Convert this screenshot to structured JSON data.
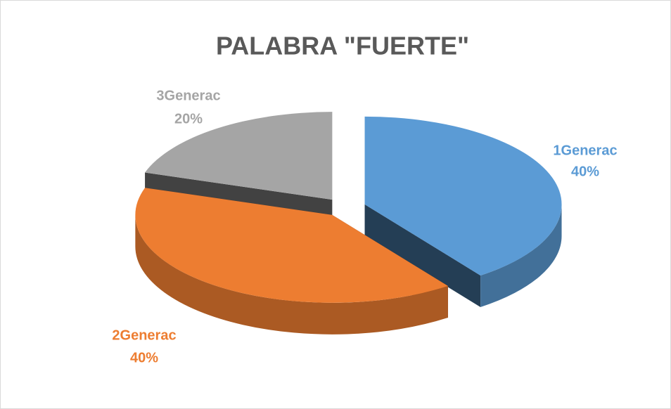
{
  "chart_data": {
    "type": "pie3d",
    "title": "PALABRA \"FUERTE\"",
    "categories": [
      "1Generac",
      "2Generac",
      "3Generac"
    ],
    "values": [
      40,
      40,
      20
    ],
    "value_labels": [
      "40%",
      "40%",
      "20%"
    ],
    "colors": [
      "#5b9bd5",
      "#ed7d31",
      "#a5a5a5"
    ]
  }
}
